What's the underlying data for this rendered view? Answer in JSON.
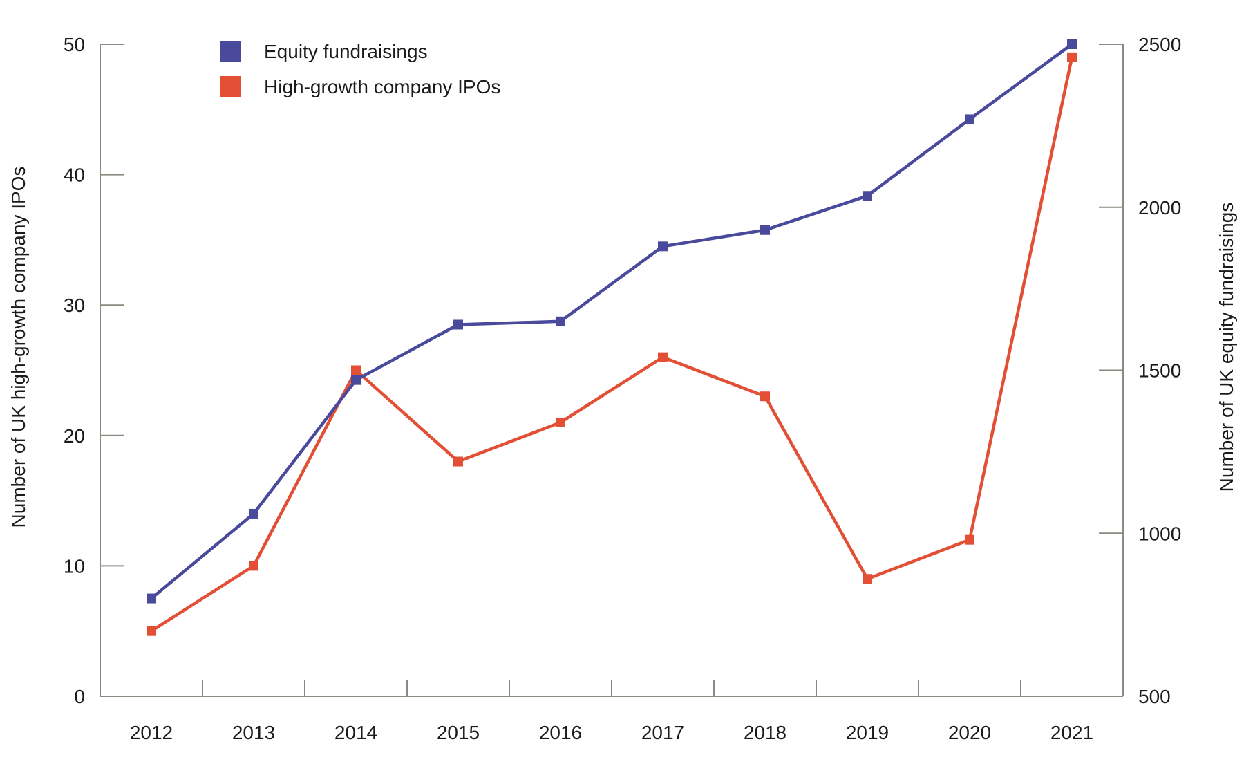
{
  "chart_data": {
    "type": "line",
    "categories": [
      "2012",
      "2013",
      "2014",
      "2015",
      "2016",
      "2017",
      "2018",
      "2019",
      "2020",
      "2021"
    ],
    "series": [
      {
        "name": "Equity fundraisings",
        "axis": "right",
        "color": "#4a4a9c",
        "values": [
          800,
          1060,
          1470,
          1640,
          1650,
          1880,
          1930,
          2035,
          2270,
          2500
        ]
      },
      {
        "name": "High-growth company IPOs",
        "axis": "left",
        "color": "#e24f35",
        "values": [
          5,
          10,
          25,
          18,
          21,
          26,
          23,
          9,
          12,
          49
        ]
      }
    ],
    "ylabel_left": "Number of UK high-growth company IPOs",
    "ylabel_right": "Number of UK equity fundraisings",
    "ylim_left": [
      0,
      50
    ],
    "ylim_right": [
      500,
      2500
    ],
    "yticks_left": [
      "0",
      "10",
      "20",
      "30",
      "40",
      "50"
    ],
    "yticks_right": [
      "500",
      "1000",
      "1500",
      "2000",
      "2500"
    ],
    "legend_position": "top-left",
    "grid": false,
    "axis_color": "#8a8a80"
  }
}
